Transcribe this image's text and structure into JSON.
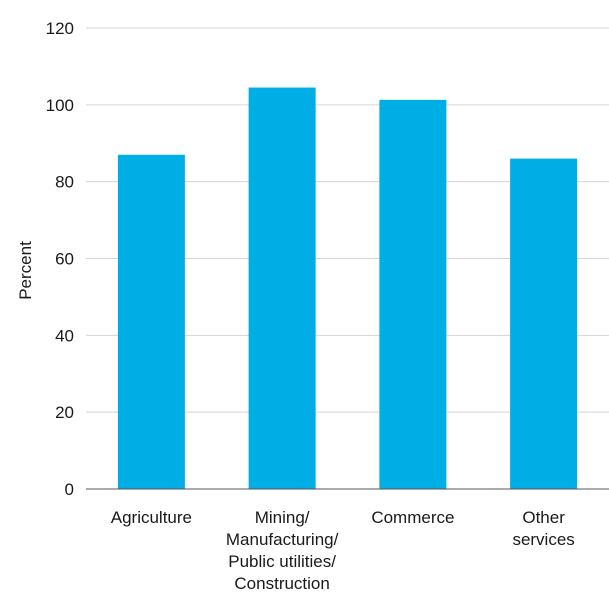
{
  "chart_data": {
    "type": "bar",
    "title": "",
    "xlabel": "",
    "ylabel": "Percent",
    "ylim": [
      0,
      120
    ],
    "yticks": [
      0,
      20,
      40,
      60,
      80,
      100,
      120
    ],
    "grid": true,
    "categories": [
      [
        "Agriculture"
      ],
      [
        "Mining/",
        "Manufacturing/",
        "Public utilities/",
        "Construction"
      ],
      [
        "Commerce"
      ],
      [
        "Other",
        "services"
      ]
    ],
    "values": [
      87,
      104.5,
      101.3,
      86
    ],
    "bar_color": "#00aee6"
  }
}
